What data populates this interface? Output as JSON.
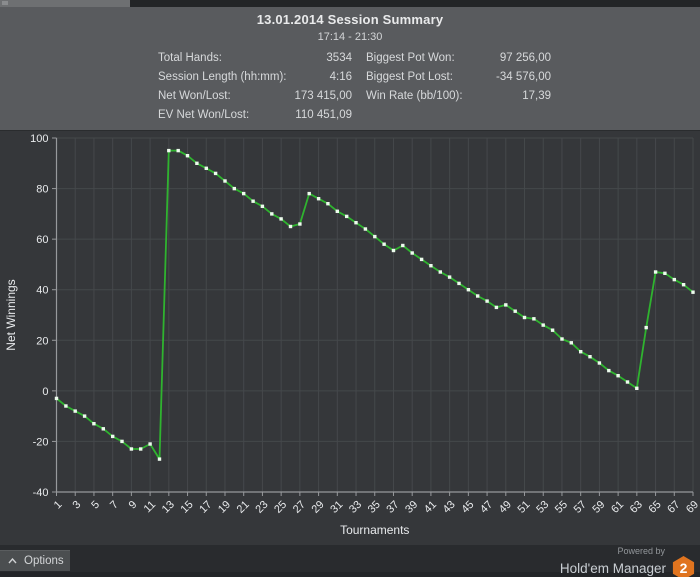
{
  "window": {
    "title": "13.01.2014 Session Summary",
    "subtitle": "17:14 - 21:30"
  },
  "stats": {
    "left": [
      {
        "label": "Total Hands:",
        "value": "3534"
      },
      {
        "label": "Session Length (hh:mm):",
        "value": "4:16"
      },
      {
        "label": "Net Won/Lost:",
        "value": "173 415,00"
      },
      {
        "label": "EV Net Won/Lost:",
        "value": "110 451,09"
      }
    ],
    "right": [
      {
        "label": "Biggest Pot Won:",
        "value": "97 256,00"
      },
      {
        "label": "Biggest Pot Lost:",
        "value": "-34 576,00"
      },
      {
        "label": "Win Rate (bb/100):",
        "value": "17,39"
      }
    ]
  },
  "chart_data": {
    "type": "line",
    "xlabel": "Tournaments",
    "ylabel": "Net Winnings",
    "ylim": [
      -40,
      100
    ],
    "yticks": [
      100,
      80,
      60,
      40,
      20,
      0,
      -20,
      -40
    ],
    "xticks": [
      1,
      3,
      5,
      7,
      9,
      11,
      13,
      15,
      17,
      19,
      21,
      23,
      25,
      27,
      29,
      31,
      33,
      35,
      37,
      39,
      41,
      43,
      45,
      47,
      49,
      51,
      53,
      55,
      57,
      59,
      61,
      63,
      65,
      67,
      69
    ],
    "xtick_rotation": -45,
    "grid": true,
    "x": [
      1,
      2,
      3,
      4,
      5,
      6,
      7,
      8,
      9,
      10,
      11,
      12,
      13,
      14,
      15,
      16,
      17,
      18,
      19,
      20,
      21,
      22,
      23,
      24,
      25,
      26,
      27,
      28,
      29,
      30,
      31,
      32,
      33,
      34,
      35,
      36,
      37,
      38,
      39,
      40,
      41,
      42,
      43,
      44,
      45,
      46,
      47,
      48,
      49,
      50,
      51,
      52,
      53,
      54,
      55,
      56,
      57,
      58,
      59,
      60,
      61,
      62,
      63,
      64,
      65,
      66,
      67,
      68,
      69
    ],
    "values": [
      -3,
      -6,
      -8,
      -10,
      -13,
      -15,
      -18,
      -20,
      -23,
      -23,
      -21,
      -27,
      95,
      95,
      93,
      90,
      88,
      86,
      83,
      80,
      78,
      75,
      73,
      70,
      68,
      65,
      66,
      78,
      76,
      74,
      71,
      69,
      66.5,
      64,
      61,
      58,
      55.5,
      57.5,
      54.5,
      52,
      49.5,
      47,
      45,
      42.5,
      40,
      37.5,
      35.5,
      33,
      34,
      31.5,
      29,
      28.5,
      26,
      24,
      20.5,
      19,
      15.5,
      13.5,
      11,
      8,
      6,
      3.5,
      1,
      25,
      47,
      46.5,
      44,
      42,
      39
    ],
    "line_color": "#2fb32f",
    "marker_color": "#edfbed",
    "background": "#35373a",
    "grid_color": "#45484b",
    "axis_color": "#97999c",
    "text_color": "#e8eaec"
  },
  "footer": {
    "options_label": "Options",
    "powered_by": "Powered by",
    "brand": "Hold'em Manager",
    "brand_badge": "2"
  }
}
